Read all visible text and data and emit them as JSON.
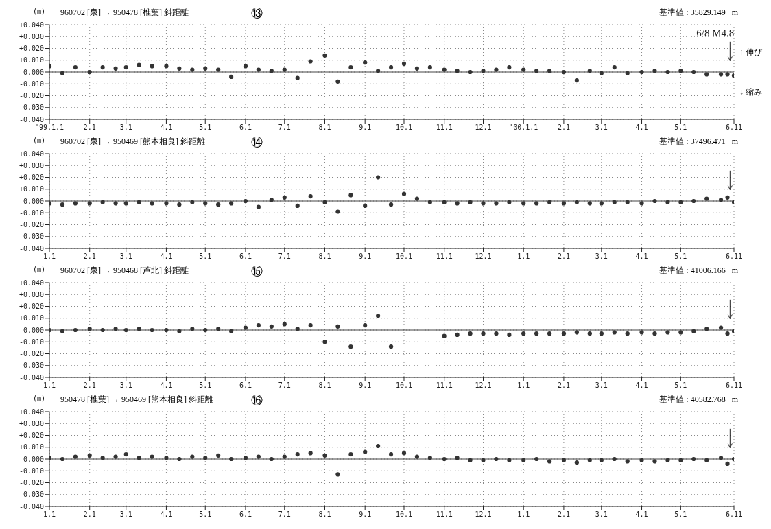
{
  "chart_data": [
    {
      "type": "scatter",
      "title": "960702 [泉] → 950478 [椎葉]   斜距離",
      "ylabel": "(m)",
      "marker": "circle",
      "grid": true,
      "annotations": [
        "⑬",
        "基準値 : 35829.149   m",
        "↑ 伸び",
        "↓ 縮み"
      ],
      "x": [
        "1999-01-01",
        "1999-01-11",
        "1999-01-21",
        "1999-02-01",
        "1999-02-11",
        "1999-02-21",
        "1999-03-01",
        "1999-03-11",
        "1999-03-21",
        "1999-04-01",
        "1999-04-11",
        "1999-04-21",
        "1999-05-01",
        "1999-05-11",
        "1999-05-21",
        "1999-06-01",
        "1999-06-11",
        "1999-06-21",
        "1999-07-01",
        "1999-07-11",
        "1999-07-21",
        "1999-08-01",
        "1999-08-11",
        "1999-08-21",
        "1999-09-01",
        "1999-09-11",
        "1999-09-21",
        "1999-10-01",
        "1999-10-11",
        "1999-10-21",
        "1999-11-01",
        "1999-11-11",
        "1999-11-21",
        "1999-12-01",
        "1999-12-11",
        "1999-12-21",
        "2000-01-01",
        "2000-01-11",
        "2000-01-21",
        "2000-02-01",
        "2000-02-11",
        "2000-02-21",
        "2000-03-01",
        "2000-03-11",
        "2000-03-21",
        "2000-04-01",
        "2000-04-11",
        "2000-04-21",
        "2000-05-01",
        "2000-05-11",
        "2000-05-21",
        "2000-06-01",
        "2000-06-06",
        "2000-06-11"
      ],
      "series": [
        {
          "color": "#333333",
          "values": [
            0.005,
            -0.001,
            0.004,
            0.0,
            0.004,
            0.003,
            0.004,
            0.006,
            0.005,
            0.005,
            0.003,
            0.002,
            0.003,
            0.002,
            -0.004,
            0.005,
            0.002,
            0.001,
            0.002,
            -0.005,
            0.009,
            0.014,
            -0.008,
            0.004,
            0.008,
            0.001,
            0.004,
            0.007,
            0.003,
            0.004,
            0.002,
            0.001,
            0.0,
            0.001,
            0.002,
            0.004,
            0.002,
            0.001,
            0.001,
            0.0,
            -0.007,
            0.001,
            -0.001,
            0.004,
            -0.001,
            0.0,
            0.001,
            0.0,
            0.001,
            0.0,
            -0.002,
            -0.002,
            -0.002,
            -0.003
          ]
        }
      ],
      "ref_lines": [
        {
          "axis": "x",
          "value": "2000-06-08",
          "label": "6/8  M4.8",
          "color": "#222222"
        },
        {
          "axis": "y",
          "value": 0,
          "color": "#444444"
        }
      ],
      "xlim": [
        "1999-01-01",
        "2000-06-11"
      ],
      "xticks": [
        {
          "value": "1999-01-01",
          "label": "'99.1.1"
        },
        {
          "value": "1999-02-01",
          "label": "2.1"
        },
        {
          "value": "1999-03-01",
          "label": "3.1"
        },
        {
          "value": "1999-04-01",
          "label": "4.1"
        },
        {
          "value": "1999-05-01",
          "label": "5.1"
        },
        {
          "value": "1999-06-01",
          "label": "6.1"
        },
        {
          "value": "1999-07-01",
          "label": "7.1"
        },
        {
          "value": "1999-08-01",
          "label": "8.1"
        },
        {
          "value": "1999-09-01",
          "label": "9.1"
        },
        {
          "value": "1999-10-01",
          "label": "10.1"
        },
        {
          "value": "1999-11-01",
          "label": "11.1"
        },
        {
          "value": "1999-12-01",
          "label": "12.1"
        },
        {
          "value": "2000-01-01",
          "label": "'00.1.1"
        },
        {
          "value": "2000-02-01",
          "label": "2.1"
        },
        {
          "value": "2000-03-01",
          "label": "3.1"
        },
        {
          "value": "2000-04-01",
          "label": "4.1"
        },
        {
          "value": "2000-05-01",
          "label": "5.1"
        },
        {
          "value": "2000-06-11",
          "label": "6.11"
        }
      ],
      "ylim": [
        -0.04,
        0.04
      ],
      "yticks": [
        {
          "value": 0.04,
          "label": "+0.040"
        },
        {
          "value": 0.03,
          "label": "+0.030"
        },
        {
          "value": 0.02,
          "label": "+0.020"
        },
        {
          "value": 0.01,
          "label": "+0.010"
        },
        {
          "value": 0,
          "label": "0.000"
        },
        {
          "value": -0.01,
          "label": "-0.010"
        },
        {
          "value": -0.02,
          "label": "-0.020"
        },
        {
          "value": -0.03,
          "label": "-0.030"
        },
        {
          "value": -0.04,
          "label": "-0.040"
        }
      ]
    },
    {
      "type": "scatter",
      "title": "960702 [泉] → 950469 [熊本相良]   斜距離",
      "ylabel": "(m)",
      "marker": "circle",
      "grid": true,
      "annotations": [
        "⑭",
        "基準値 : 37496.471   m"
      ],
      "x": [
        "1999-01-01",
        "1999-01-11",
        "1999-01-21",
        "1999-02-01",
        "1999-02-11",
        "1999-02-21",
        "1999-03-01",
        "1999-03-11",
        "1999-03-21",
        "1999-04-01",
        "1999-04-11",
        "1999-04-21",
        "1999-05-01",
        "1999-05-11",
        "1999-05-21",
        "1999-06-01",
        "1999-06-11",
        "1999-06-21",
        "1999-07-01",
        "1999-07-11",
        "1999-07-21",
        "1999-08-01",
        "1999-08-11",
        "1999-08-21",
        "1999-09-01",
        "1999-09-11",
        "1999-09-21",
        "1999-10-01",
        "1999-10-11",
        "1999-10-21",
        "1999-11-01",
        "1999-11-11",
        "1999-11-21",
        "1999-12-01",
        "1999-12-11",
        "1999-12-21",
        "2000-01-01",
        "2000-01-11",
        "2000-01-21",
        "2000-02-01",
        "2000-02-11",
        "2000-02-21",
        "2000-03-01",
        "2000-03-11",
        "2000-03-21",
        "2000-04-01",
        "2000-04-11",
        "2000-04-21",
        "2000-05-01",
        "2000-05-11",
        "2000-05-21",
        "2000-06-01",
        "2000-06-06",
        "2000-06-11"
      ],
      "series": [
        {
          "color": "#333333",
          "values": [
            -0.002,
            -0.003,
            -0.002,
            -0.002,
            -0.001,
            -0.002,
            -0.002,
            -0.001,
            -0.002,
            -0.002,
            -0.003,
            -0.001,
            -0.002,
            -0.003,
            -0.002,
            0.0,
            -0.005,
            0.001,
            0.003,
            -0.004,
            0.004,
            -0.001,
            -0.009,
            0.005,
            -0.004,
            0.02,
            -0.003,
            0.006,
            0.002,
            -0.001,
            -0.001,
            -0.002,
            -0.001,
            -0.002,
            -0.002,
            -0.001,
            -0.002,
            -0.002,
            -0.001,
            -0.002,
            -0.001,
            -0.002,
            -0.002,
            -0.001,
            -0.001,
            -0.002,
            0.0,
            -0.001,
            -0.001,
            0.0,
            0.002,
            0.001,
            0.003,
            -0.001
          ]
        }
      ],
      "ref_lines": [
        {
          "axis": "x",
          "value": "2000-06-08",
          "color": "#222222"
        },
        {
          "axis": "y",
          "value": 0,
          "color": "#444444"
        }
      ],
      "xlim": [
        "1999-01-01",
        "2000-06-11"
      ],
      "xticks": [
        {
          "value": "1999-01-01",
          "label": "1.1"
        },
        {
          "value": "1999-02-01",
          "label": "2.1"
        },
        {
          "value": "1999-03-01",
          "label": "3.1"
        },
        {
          "value": "1999-04-01",
          "label": "4.1"
        },
        {
          "value": "1999-05-01",
          "label": "5.1"
        },
        {
          "value": "1999-06-01",
          "label": "6.1"
        },
        {
          "value": "1999-07-01",
          "label": "7.1"
        },
        {
          "value": "1999-08-01",
          "label": "8.1"
        },
        {
          "value": "1999-09-01",
          "label": "9.1"
        },
        {
          "value": "1999-10-01",
          "label": "10.1"
        },
        {
          "value": "1999-11-01",
          "label": "11.1"
        },
        {
          "value": "1999-12-01",
          "label": "12.1"
        },
        {
          "value": "2000-01-01",
          "label": "1.1"
        },
        {
          "value": "2000-02-01",
          "label": "2.1"
        },
        {
          "value": "2000-03-01",
          "label": "3.1"
        },
        {
          "value": "2000-04-01",
          "label": "4.1"
        },
        {
          "value": "2000-05-01",
          "label": "5.1"
        },
        {
          "value": "2000-06-11",
          "label": "6.11"
        }
      ],
      "ylim": [
        -0.04,
        0.04
      ],
      "yticks": [
        {
          "value": 0.04,
          "label": "+0.040"
        },
        {
          "value": 0.03,
          "label": "+0.030"
        },
        {
          "value": 0.02,
          "label": "+0.020"
        },
        {
          "value": 0.01,
          "label": "+0.010"
        },
        {
          "value": 0,
          "label": "0.000"
        },
        {
          "value": -0.01,
          "label": "-0.010"
        },
        {
          "value": -0.02,
          "label": "-0.020"
        },
        {
          "value": -0.03,
          "label": "-0.030"
        },
        {
          "value": -0.04,
          "label": "-0.040"
        }
      ]
    },
    {
      "type": "scatter",
      "title": "960702 [泉] → 950468 [芦北]   斜距離",
      "ylabel": "(m)",
      "marker": "circle",
      "grid": true,
      "annotations": [
        "⑮",
        "基準値 : 41006.166   m"
      ],
      "x": [
        "1999-01-01",
        "1999-01-11",
        "1999-01-21",
        "1999-02-01",
        "1999-02-11",
        "1999-02-21",
        "1999-03-01",
        "1999-03-11",
        "1999-03-21",
        "1999-04-01",
        "1999-04-11",
        "1999-04-21",
        "1999-05-01",
        "1999-05-11",
        "1999-05-21",
        "1999-06-01",
        "1999-06-11",
        "1999-06-21",
        "1999-07-01",
        "1999-07-11",
        "1999-07-21",
        "1999-08-01",
        "1999-08-11",
        "1999-08-21",
        "1999-09-01",
        "1999-09-11",
        "1999-09-21",
        "1999-10-01",
        "1999-10-11",
        "1999-10-21",
        "1999-11-01",
        "1999-11-11",
        "1999-11-21",
        "1999-12-01",
        "1999-12-11",
        "1999-12-21",
        "2000-01-01",
        "2000-01-11",
        "2000-01-21",
        "2000-02-01",
        "2000-02-11",
        "2000-02-21",
        "2000-03-01",
        "2000-03-11",
        "2000-03-21",
        "2000-04-01",
        "2000-04-11",
        "2000-04-21",
        "2000-05-01",
        "2000-05-11",
        "2000-05-21",
        "2000-06-01",
        "2000-06-06",
        "2000-06-11"
      ],
      "series": [
        {
          "color": "#333333",
          "values": [
            0.0,
            -0.001,
            0.0,
            0.001,
            0.0,
            0.001,
            0.0,
            0.001,
            0.0,
            0.0,
            -0.001,
            0.001,
            0.0,
            0.001,
            -0.001,
            0.002,
            0.004,
            0.003,
            0.005,
            0.001,
            0.004,
            -0.01,
            0.003,
            -0.014,
            0.004,
            0.012,
            -0.014,
            null,
            null,
            null,
            -0.005,
            -0.004,
            -0.003,
            -0.003,
            -0.003,
            -0.004,
            -0.003,
            -0.003,
            -0.003,
            -0.003,
            -0.002,
            -0.003,
            -0.003,
            -0.002,
            -0.003,
            -0.002,
            -0.003,
            -0.002,
            -0.002,
            -0.001,
            0.001,
            0.002,
            -0.003,
            -0.001
          ]
        }
      ],
      "ref_lines": [
        {
          "axis": "x",
          "value": "2000-06-08",
          "color": "#222222"
        },
        {
          "axis": "y",
          "value": 0,
          "color": "#444444"
        }
      ],
      "xlim": [
        "1999-01-01",
        "2000-06-11"
      ],
      "xticks": [
        {
          "value": "1999-01-01",
          "label": "1.1"
        },
        {
          "value": "1999-02-01",
          "label": "2.1"
        },
        {
          "value": "1999-03-01",
          "label": "3.1"
        },
        {
          "value": "1999-04-01",
          "label": "4.1"
        },
        {
          "value": "1999-05-01",
          "label": "5.1"
        },
        {
          "value": "1999-06-01",
          "label": "6.1"
        },
        {
          "value": "1999-07-01",
          "label": "7.1"
        },
        {
          "value": "1999-08-01",
          "label": "8.1"
        },
        {
          "value": "1999-09-01",
          "label": "9.1"
        },
        {
          "value": "1999-10-01",
          "label": "10.1"
        },
        {
          "value": "1999-11-01",
          "label": "11.1"
        },
        {
          "value": "1999-12-01",
          "label": "12.1"
        },
        {
          "value": "2000-01-01",
          "label": "1.1"
        },
        {
          "value": "2000-02-01",
          "label": "2.1"
        },
        {
          "value": "2000-03-01",
          "label": "3.1"
        },
        {
          "value": "2000-04-01",
          "label": "4.1"
        },
        {
          "value": "2000-05-01",
          "label": "5.1"
        },
        {
          "value": "2000-06-11",
          "label": "6.11"
        }
      ],
      "ylim": [
        -0.04,
        0.04
      ],
      "yticks": [
        {
          "value": 0.04,
          "label": "+0.040"
        },
        {
          "value": 0.03,
          "label": "+0.030"
        },
        {
          "value": 0.02,
          "label": "+0.020"
        },
        {
          "value": 0.01,
          "label": "+0.010"
        },
        {
          "value": 0,
          "label": "0.000"
        },
        {
          "value": -0.01,
          "label": "-0.010"
        },
        {
          "value": -0.02,
          "label": "-0.020"
        },
        {
          "value": -0.03,
          "label": "-0.030"
        },
        {
          "value": -0.04,
          "label": "-0.040"
        }
      ]
    },
    {
      "type": "scatter",
      "title": "950478 [椎葉] → 950469 [熊本相良]   斜距離",
      "ylabel": "(m)",
      "marker": "circle",
      "grid": true,
      "annotations": [
        "⑯",
        "基準値 : 40582.768   m"
      ],
      "x": [
        "1999-01-01",
        "1999-01-11",
        "1999-01-21",
        "1999-02-01",
        "1999-02-11",
        "1999-02-21",
        "1999-03-01",
        "1999-03-11",
        "1999-03-21",
        "1999-04-01",
        "1999-04-11",
        "1999-04-21",
        "1999-05-01",
        "1999-05-11",
        "1999-05-21",
        "1999-06-01",
        "1999-06-11",
        "1999-06-21",
        "1999-07-01",
        "1999-07-11",
        "1999-07-21",
        "1999-08-01",
        "1999-08-11",
        "1999-08-21",
        "1999-09-01",
        "1999-09-11",
        "1999-09-21",
        "1999-10-01",
        "1999-10-11",
        "1999-10-21",
        "1999-11-01",
        "1999-11-11",
        "1999-11-21",
        "1999-12-01",
        "1999-12-11",
        "1999-12-21",
        "2000-01-01",
        "2000-01-11",
        "2000-01-21",
        "2000-02-01",
        "2000-02-11",
        "2000-02-21",
        "2000-03-01",
        "2000-03-11",
        "2000-03-21",
        "2000-04-01",
        "2000-04-11",
        "2000-04-21",
        "2000-05-01",
        "2000-05-11",
        "2000-05-21",
        "2000-06-01",
        "2000-06-06",
        "2000-06-11"
      ],
      "series": [
        {
          "color": "#333333",
          "values": [
            0.001,
            0.0,
            0.002,
            0.003,
            0.001,
            0.002,
            0.004,
            0.001,
            0.002,
            0.001,
            0.0,
            0.002,
            0.001,
            0.003,
            0.0,
            0.001,
            0.002,
            0.0,
            0.002,
            0.004,
            0.005,
            0.003,
            -0.013,
            0.004,
            0.006,
            0.011,
            0.004,
            0.005,
            0.002,
            0.001,
            0.0,
            0.001,
            -0.001,
            -0.001,
            0.0,
            -0.001,
            -0.001,
            0.0,
            -0.002,
            -0.001,
            -0.003,
            -0.001,
            -0.001,
            0.0,
            -0.002,
            -0.001,
            -0.002,
            -0.001,
            -0.001,
            0.0,
            -0.001,
            0.001,
            -0.004,
            0.0
          ]
        }
      ],
      "ref_lines": [
        {
          "axis": "x",
          "value": "2000-06-08",
          "color": "#222222"
        },
        {
          "axis": "y",
          "value": 0,
          "color": "#444444"
        }
      ],
      "xlim": [
        "1999-01-01",
        "2000-06-11"
      ],
      "xticks": [
        {
          "value": "1999-01-01",
          "label": "1.1"
        },
        {
          "value": "1999-02-01",
          "label": "2.1"
        },
        {
          "value": "1999-03-01",
          "label": "3.1"
        },
        {
          "value": "1999-04-01",
          "label": "4.1"
        },
        {
          "value": "1999-05-01",
          "label": "5.1"
        },
        {
          "value": "1999-06-01",
          "label": "6.1"
        },
        {
          "value": "1999-07-01",
          "label": "7.1"
        },
        {
          "value": "1999-08-01",
          "label": "8.1"
        },
        {
          "value": "1999-09-01",
          "label": "9.1"
        },
        {
          "value": "1999-10-01",
          "label": "10.1"
        },
        {
          "value": "1999-11-01",
          "label": "11.1"
        },
        {
          "value": "1999-12-01",
          "label": "12.1"
        },
        {
          "value": "2000-01-01",
          "label": "1.1"
        },
        {
          "value": "2000-02-01",
          "label": "2.1"
        },
        {
          "value": "2000-03-01",
          "label": "3.1"
        },
        {
          "value": "2000-04-01",
          "label": "4.1"
        },
        {
          "value": "2000-05-01",
          "label": "5.1"
        },
        {
          "value": "2000-06-11",
          "label": "6.11"
        }
      ],
      "ylim": [
        -0.04,
        0.04
      ],
      "yticks": [
        {
          "value": 0.04,
          "label": "+0.040"
        },
        {
          "value": 0.03,
          "label": "+0.030"
        },
        {
          "value": 0.02,
          "label": "+0.020"
        },
        {
          "value": 0.01,
          "label": "+0.010"
        },
        {
          "value": 0,
          "label": "0.000"
        },
        {
          "value": -0.01,
          "label": "-0.010"
        },
        {
          "value": -0.02,
          "label": "-0.020"
        },
        {
          "value": -0.03,
          "label": "-0.030"
        },
        {
          "value": -0.04,
          "label": "-0.040"
        }
      ]
    }
  ]
}
